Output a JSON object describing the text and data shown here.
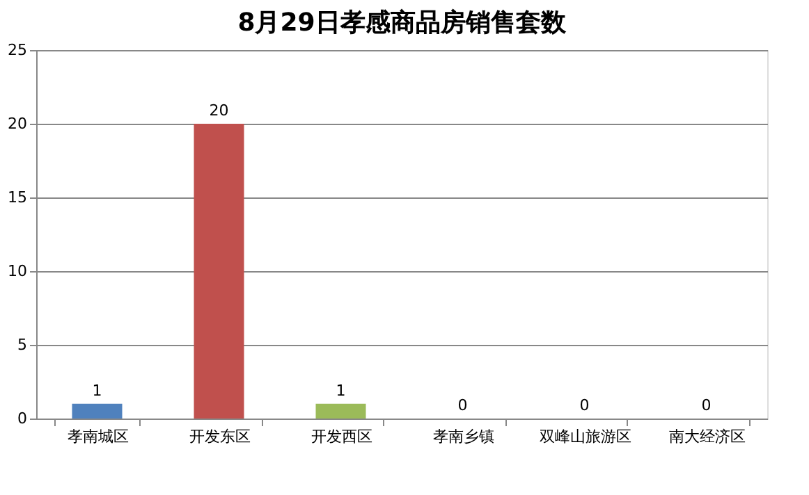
{
  "chart_data": {
    "type": "bar",
    "title": "8月29日孝感商品房销售套数",
    "categories": [
      "孝南城区",
      "开发东区",
      "开发西区",
      "孝南乡镇",
      "双峰山旅游区",
      "南大经济区"
    ],
    "values": [
      1,
      20,
      1,
      0,
      0,
      0
    ],
    "colors": [
      "#4f81bd",
      "#c0504d",
      "#9bbb59",
      "#4f81bd",
      "#4f81bd",
      "#4f81bd"
    ],
    "ylim": [
      0,
      25
    ],
    "yticks": [
      0,
      5,
      10,
      15,
      20,
      25
    ],
    "grid": "y",
    "data_labels": true
  }
}
